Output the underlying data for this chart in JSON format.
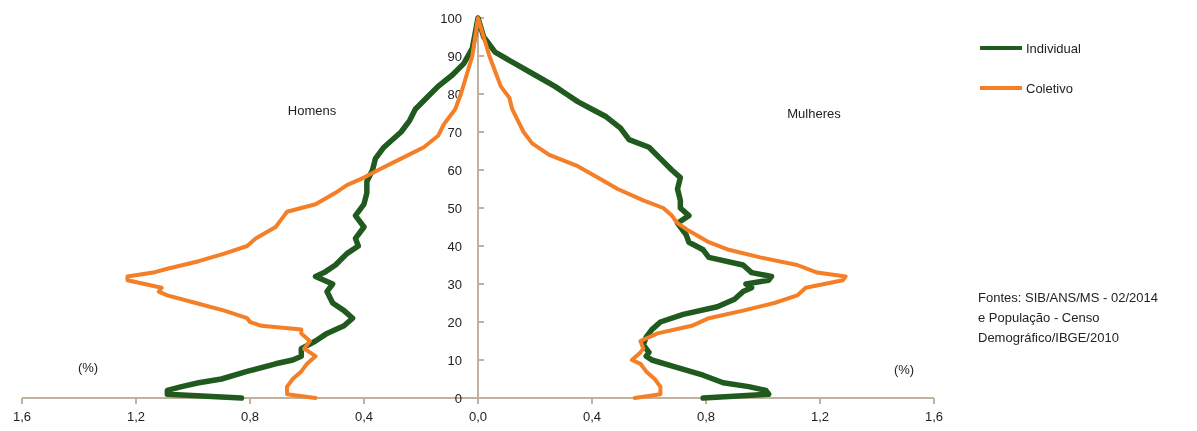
{
  "chart_data": {
    "type": "line",
    "xlim": [
      -1.6,
      1.6
    ],
    "ylim": [
      0,
      100
    ],
    "xticks": [
      {
        "value": -1.6,
        "label": "1,6"
      },
      {
        "value": -1.2,
        "label": "1,2"
      },
      {
        "value": -0.8,
        "label": "0,8"
      },
      {
        "value": -0.4,
        "label": "0,4"
      },
      {
        "value": 0,
        "label": "0,0"
      },
      {
        "value": 0.4,
        "label": "0,4"
      },
      {
        "value": 0.8,
        "label": "0,8"
      },
      {
        "value": 1.2,
        "label": "1,2"
      },
      {
        "value": 1.6,
        "label": "1,6"
      }
    ],
    "yticks": [
      0,
      10,
      20,
      30,
      40,
      50,
      60,
      70,
      80,
      90,
      100
    ],
    "grid": false,
    "legend": "right",
    "marker": "none",
    "line_style": "solid",
    "annotations": [
      "Homens",
      "Mulheres",
      "(%)",
      "(%)",
      "Fontes: SIB/ANS/MS - 02/2014 e População - Censo Demográfico/IBGE/2010"
    ],
    "series": [
      {
        "name": "Individual",
        "color": "#215a1f",
        "x": [
          -0.83,
          -1.09,
          -1.09,
          -1.04,
          -0.98,
          -0.9,
          -0.81,
          -0.71,
          -0.65,
          -0.62,
          -0.62,
          -0.57,
          -0.53,
          -0.47,
          -0.44,
          -0.47,
          -0.51,
          -0.53,
          -0.51,
          -0.54,
          -0.57,
          -0.54,
          -0.5,
          -0.46,
          -0.42,
          -0.43,
          -0.4,
          -0.43,
          -0.4,
          -0.39,
          -0.39,
          -0.37,
          -0.36,
          -0.33,
          -0.27,
          -0.24,
          -0.22,
          -0.18,
          -0.14,
          -0.09,
          -0.05,
          -0.02,
          0,
          0.02,
          0.06,
          0.13,
          0.2,
          0.27,
          0.31,
          0.35,
          0.4,
          0.45,
          0.5,
          0.53,
          0.6,
          0.64,
          0.68,
          0.71,
          0.7,
          0.71,
          0.71,
          0.74,
          0.7,
          0.73,
          0.74,
          0.79,
          0.81,
          0.93,
          0.96,
          1.03,
          1.02,
          0.94,
          0.96,
          0.93,
          0.9,
          0.84,
          0.72,
          0.64,
          0.61,
          0.59,
          0.58,
          0.6,
          0.59,
          0.61,
          0.7,
          0.79,
          0.86,
          0.95,
          1.01,
          1.02,
          0.79
        ],
        "values": [
          0,
          1,
          2,
          3,
          4,
          5,
          7,
          9,
          10,
          11,
          13,
          15,
          17,
          19,
          21,
          23,
          25,
          28,
          30,
          31,
          32,
          33,
          35,
          38,
          40,
          42,
          45,
          48,
          51,
          54,
          57,
          60,
          63,
          66,
          70,
          73,
          76,
          79,
          82,
          85,
          88,
          92,
          100,
          95,
          91,
          88,
          85,
          82,
          80,
          78,
          76,
          74,
          71,
          68,
          66,
          63,
          60,
          58,
          55,
          52,
          50,
          48,
          46,
          43,
          41,
          39,
          37,
          35,
          33,
          32,
          31,
          30,
          29,
          28,
          26,
          24,
          22,
          20,
          18,
          16,
          14,
          12,
          11,
          10,
          8,
          6,
          4,
          3,
          2,
          1,
          0
        ]
      },
      {
        "name": "Coletivo",
        "color": "#f47f27",
        "x": [
          -0.57,
          -0.67,
          -0.67,
          -0.65,
          -0.62,
          -0.6,
          -0.57,
          -0.61,
          -0.59,
          -0.62,
          -0.62,
          -0.76,
          -0.8,
          -0.81,
          -0.89,
          -0.99,
          -1.09,
          -1.12,
          -1.11,
          -1.17,
          -1.23,
          -1.23,
          -1.14,
          -1.09,
          -0.98,
          -0.89,
          -0.81,
          -0.78,
          -0.71,
          -0.69,
          -0.67,
          -0.57,
          -0.5,
          -0.46,
          -0.4,
          -0.35,
          -0.27,
          -0.19,
          -0.14,
          -0.12,
          -0.08,
          -0.06,
          -0.04,
          -0.02,
          -0.01,
          0,
          0.02,
          0.04,
          0.06,
          0.08,
          0.11,
          0.12,
          0.14,
          0.16,
          0.19,
          0.25,
          0.35,
          0.42,
          0.49,
          0.58,
          0.65,
          0.68,
          0.7,
          0.74,
          0.81,
          0.88,
          0.99,
          1.12,
          1.19,
          1.29,
          1.28,
          1.15,
          1.12,
          1.04,
          0.93,
          0.81,
          0.75,
          0.63,
          0.57,
          0.58,
          0.57,
          0.54,
          0.57,
          0.59,
          0.62,
          0.64,
          0.64,
          0.55
        ],
        "values": [
          0,
          1,
          3,
          5,
          7,
          9,
          11,
          13,
          15,
          17,
          18,
          19,
          20,
          21,
          23,
          25,
          27,
          28,
          29,
          30,
          31,
          32,
          33,
          34,
          36,
          38,
          40,
          42,
          45,
          47,
          49,
          51,
          54,
          56,
          58,
          60,
          63,
          66,
          69,
          72,
          76,
          80,
          85,
          90,
          95,
          100,
          95,
          90,
          86,
          82,
          79,
          76,
          73,
          70,
          67,
          64,
          61,
          58,
          55,
          52,
          50,
          48,
          46,
          44,
          41,
          39,
          37,
          35,
          33,
          32,
          31,
          29,
          27,
          25,
          23,
          21,
          19,
          17,
          15,
          13,
          12,
          10,
          9,
          7,
          5,
          3,
          1,
          0
        ]
      }
    ]
  }
}
